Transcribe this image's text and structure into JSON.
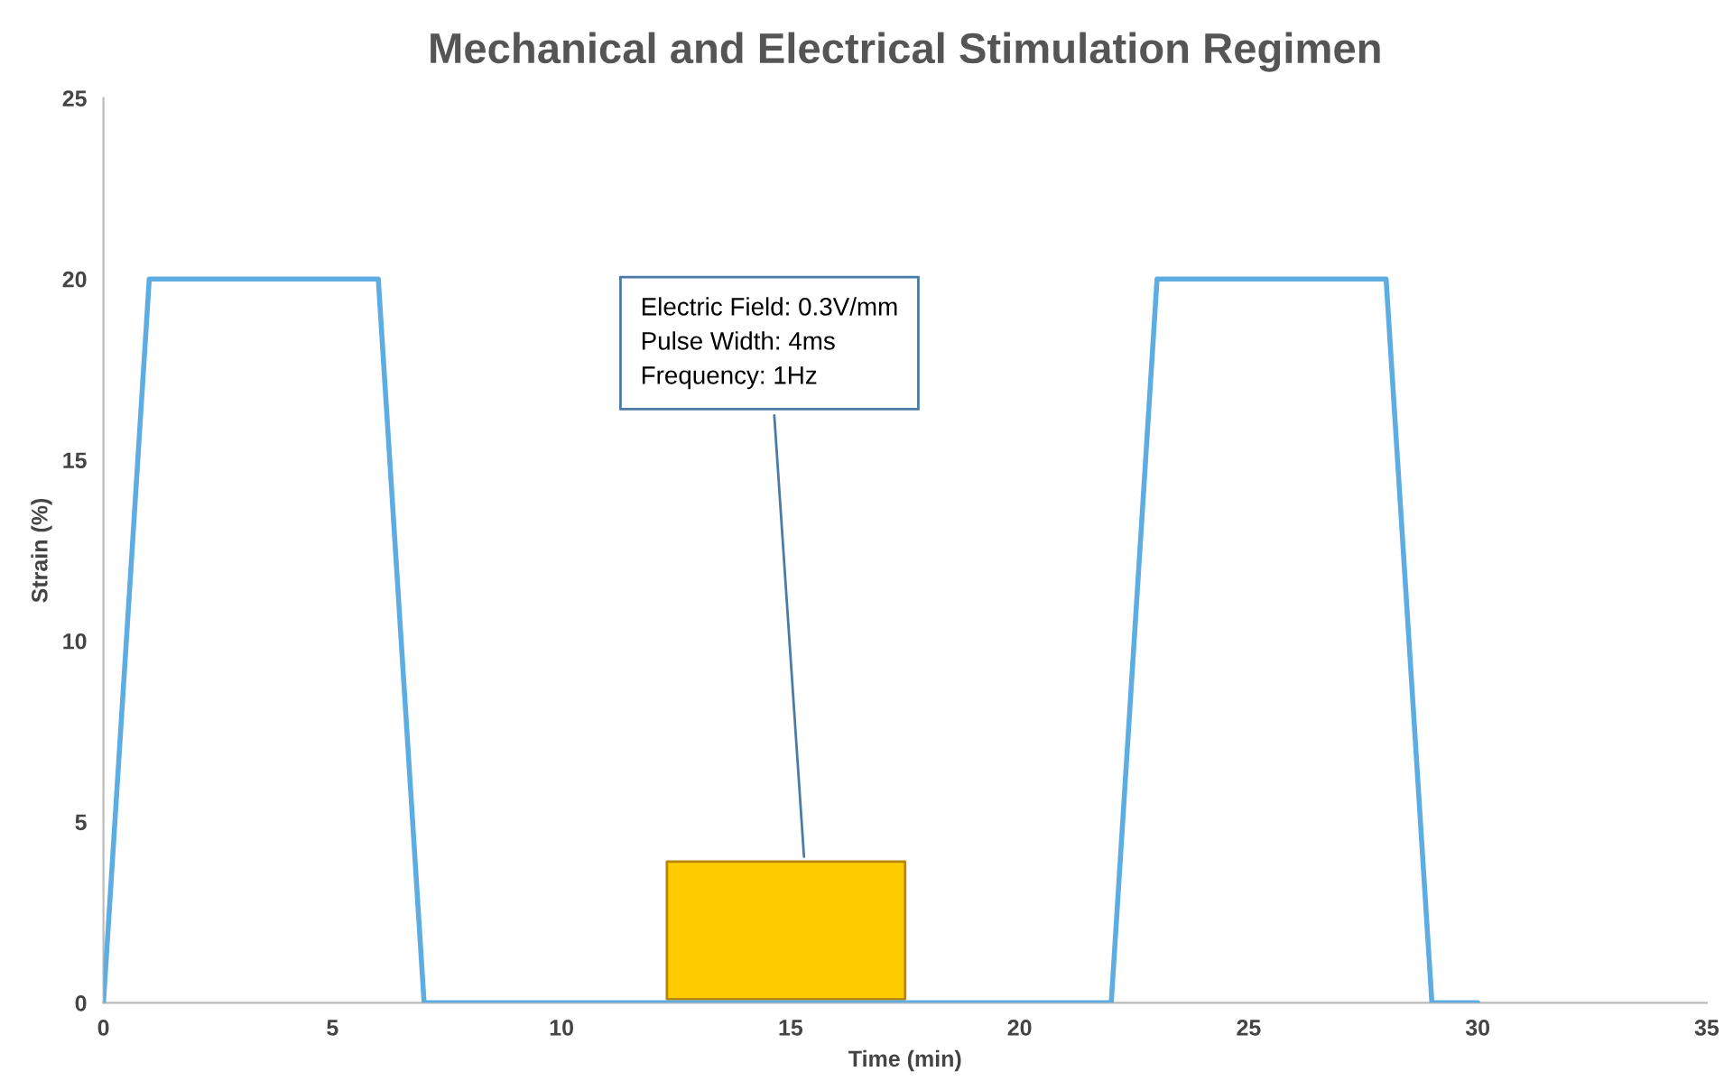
{
  "chart_data": {
    "type": "line",
    "title": "Mechanical and Electrical Stimulation Regimen",
    "xlabel": "Time (min)",
    "ylabel": "Strain (%)",
    "xlim": [
      0,
      35
    ],
    "xticks": [
      0,
      5,
      10,
      15,
      20,
      25,
      30,
      35
    ],
    "ylim": [
      0,
      25
    ],
    "yticks": [
      0,
      5,
      10,
      15,
      20,
      25
    ],
    "grid": false,
    "legend": false,
    "marker": "none",
    "line_style": "solid",
    "series": [
      {
        "color": "#5dade2",
        "x": [
          0,
          1,
          6,
          7,
          22,
          23,
          28,
          29,
          30
        ],
        "values": [
          0,
          20,
          20,
          0,
          0,
          20,
          20,
          0,
          0
        ]
      },
      {
        "type": "area",
        "color": "#ffcc00",
        "x": [
          12.3,
          12.3,
          17.5,
          17.5
        ],
        "values": [
          0.1,
          3.9,
          3.9,
          0.1
        ]
      }
    ],
    "annotations": [
      {
        "text": "Electric Field: 0.3V/mm\nPulse Width: 4ms\nFrequency: 1Hz",
        "x": 15.3,
        "y": 3.9
      }
    ]
  }
}
